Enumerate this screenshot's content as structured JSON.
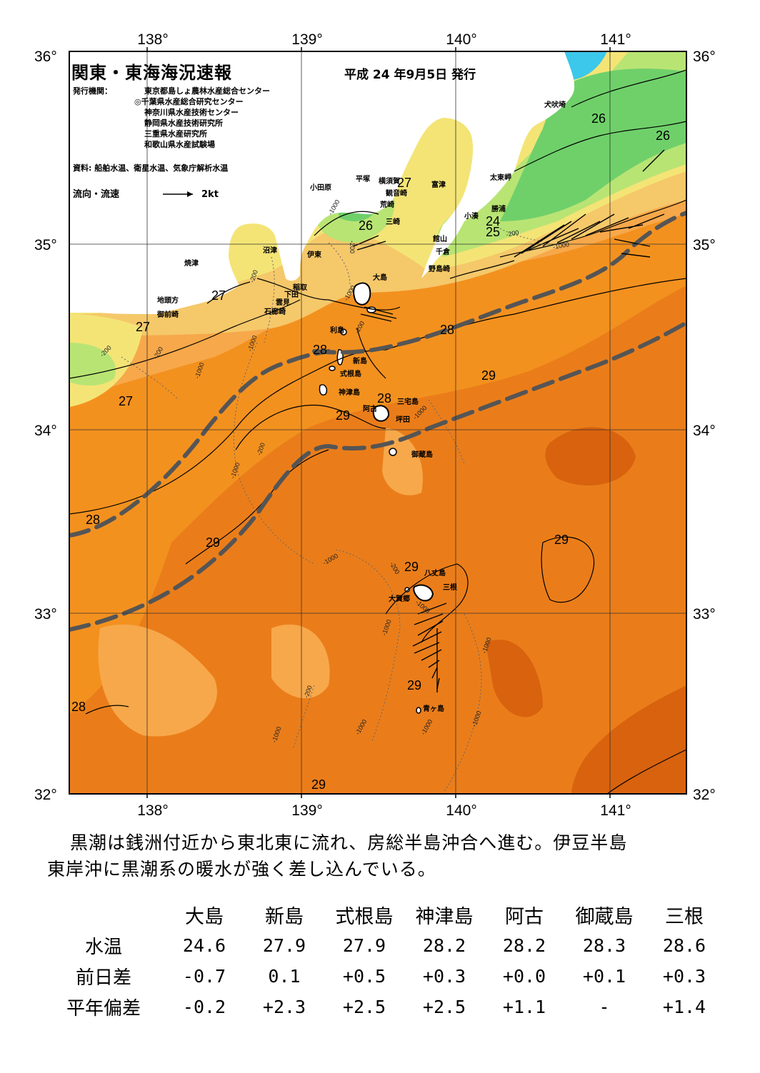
{
  "header": {
    "title": "関東・東海海況速報",
    "issue_date": "平成 24 年9月5日 発行",
    "publisher_label": "発行機関：",
    "publishers": [
      "東京都島しょ農林水産総合センター",
      "◎千葉県水産総合研究センター",
      "神奈川県水産技術センター",
      "静岡県水産技術研究所",
      "三重県水産研究所",
      "和歌山県水産試験場"
    ],
    "sources": "資料: 船舶水温、衛星水温、気象庁解析水温",
    "current_legend": "流向・流速",
    "current_scale": "2kt"
  },
  "axes": {
    "longitude_labels": [
      "138°",
      "139°",
      "140°",
      "141°"
    ],
    "latitude_labels": [
      "36°",
      "35°",
      "34°",
      "33°",
      "32°"
    ]
  },
  "map": {
    "colors": {
      "land": "#ffffff",
      "t_cyan": "#3cc8ea",
      "t_green": "#6fd06a",
      "t_lightgreen": "#b8e474",
      "t_yellow": "#f4e476",
      "t_paleorange": "#f5c86a",
      "t_orange1": "#f7a84a",
      "t_orange2": "#f3911f",
      "t_orange3": "#ea7d1a",
      "t_dark": "#d8620e",
      "kuroshio_axis": "#555555"
    },
    "place_names": [
      "犬吠埼",
      "太東岬",
      "勝浦",
      "小湊",
      "館山",
      "千倉",
      "野島崎",
      "富津",
      "観音崎",
      "横須賀",
      "平塚",
      "荒崎",
      "三崎",
      "小田原",
      "沼津",
      "伊東",
      "焼津",
      "稲取",
      "下田",
      "雲見",
      "石廊崎",
      "地頭方",
      "御前崎",
      "大島",
      "利島",
      "新島",
      "式根島",
      "神津島",
      "三宅島",
      "阿古",
      "坪田",
      "御蔵島",
      "八丈島",
      "三根",
      "大賀郷",
      "青ヶ島"
    ],
    "temperature_labels": [
      "26",
      "26",
      "27",
      "26",
      "24",
      "25",
      "27",
      "27",
      "28",
      "28",
      "27",
      "29",
      "28",
      "29",
      "28",
      "29",
      "29",
      "29",
      "29",
      "28",
      "29"
    ],
    "depth_labels": [
      "-1000",
      "-200",
      "-200",
      "-1000",
      "-200",
      "-1000",
      "-200",
      "-200",
      "-1000",
      "-200",
      "-1000",
      "-1000",
      "-200",
      "-1000",
      "-1000",
      "-200",
      "-1000",
      "-1000",
      "-200",
      "-1000",
      "-1000",
      "-1000",
      "-1000",
      "-1000"
    ]
  },
  "summary": {
    "line1": "黒潮は銭洲付近から東北東に流れ、房総半島沖合へ進む。伊豆半島",
    "line2": "東岸沖に黒潮系の暖水が強く差し込んでいる。"
  },
  "table": {
    "columns": [
      "大島",
      "新島",
      "式根島",
      "神津島",
      "阿古",
      "御蔵島",
      "三根"
    ],
    "rows": [
      {
        "label": "水温",
        "values": [
          "24.6",
          "27.9",
          "27.9",
          "28.2",
          "28.2",
          "28.3",
          "28.6"
        ]
      },
      {
        "label": "前日差",
        "values": [
          "-0.7",
          "0.1",
          "+0.5",
          "+0.3",
          "+0.0",
          "+0.1",
          "+0.3"
        ]
      },
      {
        "label": "平年偏差",
        "values": [
          "-0.2",
          "+2.3",
          "+2.5",
          "+2.5",
          "+1.1",
          "-",
          "+1.4"
        ]
      }
    ]
  }
}
